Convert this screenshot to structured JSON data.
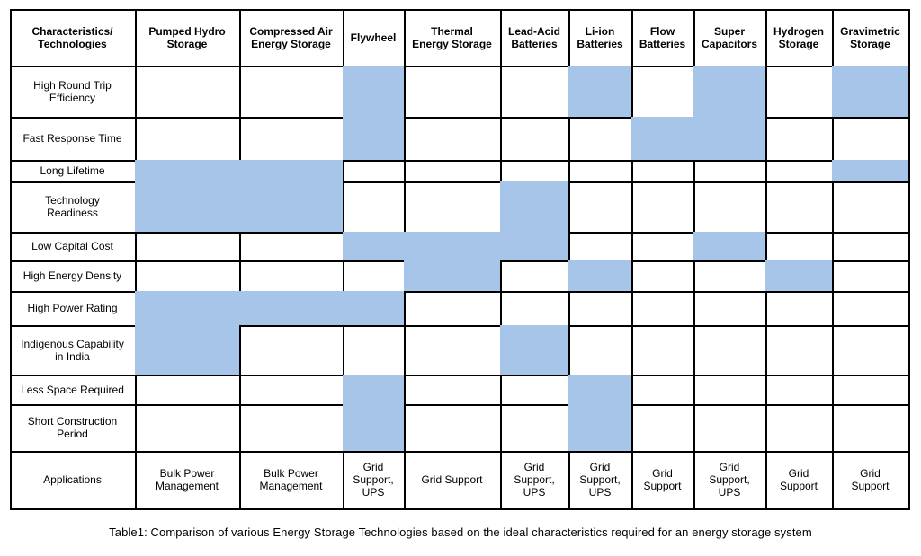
{
  "table": {
    "columns": [
      "Characteristics/\nTechnologies",
      "Pumped Hydro\nStorage",
      "Compressed Air\nEnergy Storage",
      "Flywheel",
      "Thermal\nEnergy Storage",
      "Lead-Acid\nBatteries",
      "Li-ion\nBatteries",
      "Flow\nBatteries",
      "Super\nCapacitors",
      "Hydrogen\nStorage",
      "Gravimetric\nStorage"
    ],
    "rows": [
      {
        "label": "High Round Trip\nEfficiency",
        "highlight": [
          false,
          false,
          true,
          false,
          false,
          true,
          false,
          true,
          false,
          true
        ]
      },
      {
        "label": "Fast Response Time",
        "highlight": [
          false,
          false,
          true,
          false,
          false,
          false,
          true,
          true,
          false,
          false
        ]
      },
      {
        "label": "Long Lifetime",
        "highlight": [
          true,
          true,
          false,
          false,
          false,
          false,
          false,
          false,
          false,
          true
        ]
      },
      {
        "label": "Technology\nReadiness",
        "highlight": [
          true,
          true,
          false,
          false,
          true,
          false,
          false,
          false,
          false,
          false
        ]
      },
      {
        "label": "Low Capital Cost",
        "highlight": [
          false,
          false,
          true,
          true,
          true,
          false,
          false,
          true,
          false,
          false
        ]
      },
      {
        "label": "High Energy Density",
        "highlight": [
          false,
          false,
          false,
          true,
          false,
          true,
          false,
          false,
          true,
          false
        ]
      },
      {
        "label": "High Power Rating",
        "highlight": [
          true,
          true,
          true,
          false,
          false,
          false,
          false,
          false,
          false,
          false
        ]
      },
      {
        "label": "Indigenous Capability\nin India",
        "highlight": [
          true,
          false,
          false,
          false,
          true,
          false,
          false,
          false,
          false,
          false
        ]
      },
      {
        "label": "Less Space Required",
        "highlight": [
          false,
          false,
          true,
          false,
          false,
          true,
          false,
          false,
          false,
          false
        ]
      },
      {
        "label": "Short Construction\nPeriod",
        "highlight": [
          false,
          false,
          true,
          false,
          false,
          true,
          false,
          false,
          false,
          false
        ]
      }
    ],
    "applications_row": {
      "label": "Applications",
      "values": [
        "Bulk Power\nManagement",
        "Bulk Power\nManagement",
        "Grid\nSupport,\nUPS",
        "Grid Support",
        "Grid\nSupport,\nUPS",
        "Grid\nSupport,\nUPS",
        "Grid\nSupport",
        "Grid\nSupport,\nUPS",
        "Grid\nSupport",
        "Grid\nSupport"
      ]
    }
  },
  "caption": "Table1: Comparison of various Energy Storage Technologies based on the ideal characteristics required for an energy storage system",
  "colors": {
    "highlight": "#a6c5e8"
  }
}
